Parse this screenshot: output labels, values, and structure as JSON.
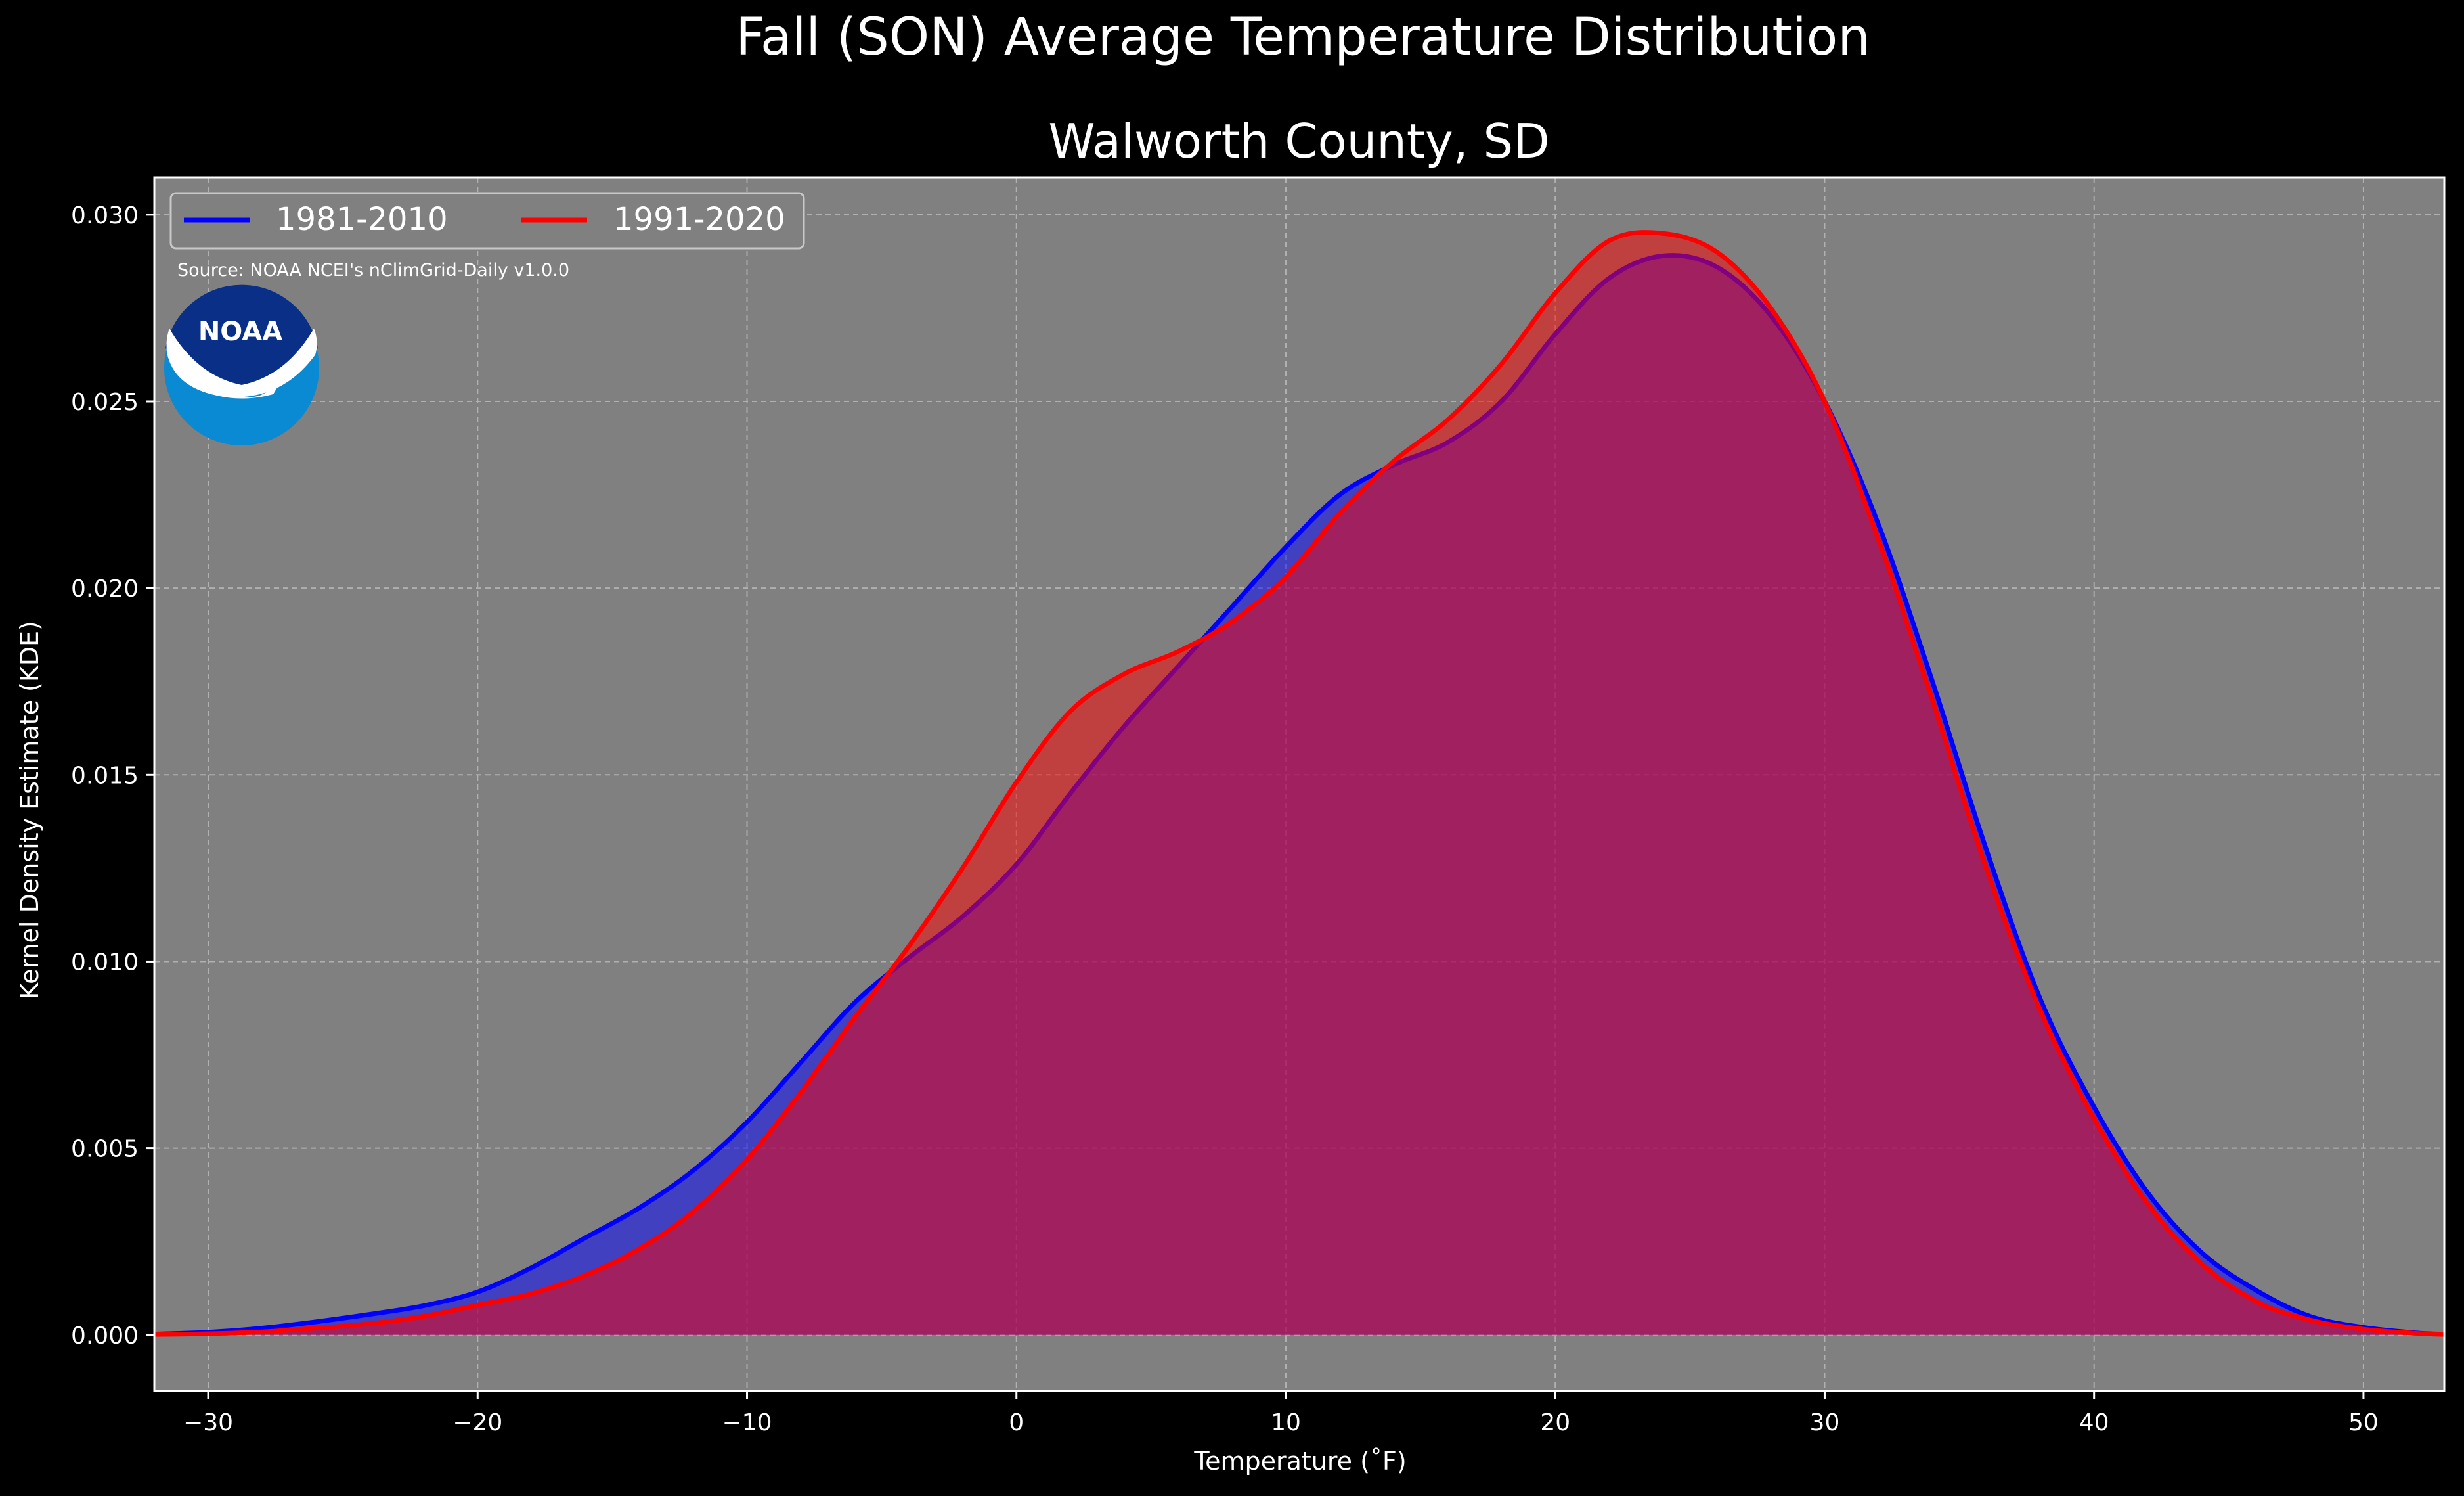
{
  "chart_data": {
    "type": "area",
    "title": "Fall (SON) Average Temperature Distribution",
    "subtitle": "Walworth County, SD",
    "xlabel": "Temperature (˚F)",
    "ylabel": "Kernel Density Estimate (KDE)",
    "xlim": [
      -32,
      53
    ],
    "ylim": [
      -0.0015,
      0.031
    ],
    "xticks": [
      -30,
      -20,
      -10,
      0,
      10,
      20,
      30,
      40,
      50
    ],
    "xtick_labels": [
      "−30",
      "−20",
      "−10",
      "0",
      "10",
      "20",
      "30",
      "40",
      "50"
    ],
    "yticks": [
      0.0,
      0.005,
      0.01,
      0.015,
      0.02,
      0.025,
      0.03
    ],
    "ytick_labels": [
      "0.000",
      "0.005",
      "0.010",
      "0.015",
      "0.020",
      "0.025",
      "0.030"
    ],
    "grid": true,
    "legend_position": "upper-left",
    "background_color": "#808080",
    "figure_color": "#000000",
    "annotation": "Source: NOAA NCEI's nClimGrid-Daily v1.0.0",
    "logo": {
      "icon": "noaa-logo",
      "text": "NOAA"
    },
    "x": [
      -32,
      -30,
      -28,
      -26,
      -24,
      -22,
      -20,
      -18,
      -16,
      -14,
      -12,
      -10,
      -8,
      -6,
      -4,
      -2,
      0,
      2,
      4,
      6,
      8,
      10,
      12,
      14,
      16,
      18,
      20,
      22,
      24,
      26,
      28,
      30,
      32,
      34,
      36,
      38,
      40,
      42,
      44,
      46,
      48,
      50,
      52,
      53
    ],
    "series": [
      {
        "name": "1981-2010",
        "color": "#0000ff",
        "fill": "#0000ff",
        "values": [
          2e-05,
          7e-05,
          0.00018,
          0.00035,
          0.00055,
          0.00078,
          0.00115,
          0.0018,
          0.0026,
          0.0034,
          0.0044,
          0.0057,
          0.0073,
          0.0089,
          0.0101,
          0.0112,
          0.0126,
          0.0145,
          0.0163,
          0.0179,
          0.0195,
          0.0211,
          0.0225,
          0.0233,
          0.0239,
          0.025,
          0.0268,
          0.0283,
          0.0289,
          0.0286,
          0.0273,
          0.025,
          0.0217,
          0.0175,
          0.013,
          0.009,
          0.0061,
          0.0038,
          0.0022,
          0.0012,
          0.0005,
          0.0002,
          5e-05,
          2e-05
        ]
      },
      {
        "name": "1991-2020",
        "color": "#ff0000",
        "fill": "#ff0000",
        "values": [
          1e-05,
          3e-05,
          8e-05,
          0.00018,
          0.0003,
          0.0005,
          0.0008,
          0.0011,
          0.0016,
          0.0023,
          0.0033,
          0.0047,
          0.0065,
          0.0085,
          0.0104,
          0.0125,
          0.0148,
          0.0167,
          0.0177,
          0.0183,
          0.0191,
          0.0203,
          0.022,
          0.0234,
          0.0245,
          0.026,
          0.0279,
          0.0293,
          0.0295,
          0.029,
          0.0275,
          0.025,
          0.0213,
          0.017,
          0.0125,
          0.0087,
          0.0058,
          0.0035,
          0.0019,
          0.0009,
          0.0004,
          0.00015,
          4e-05,
          1e-05
        ]
      }
    ]
  }
}
